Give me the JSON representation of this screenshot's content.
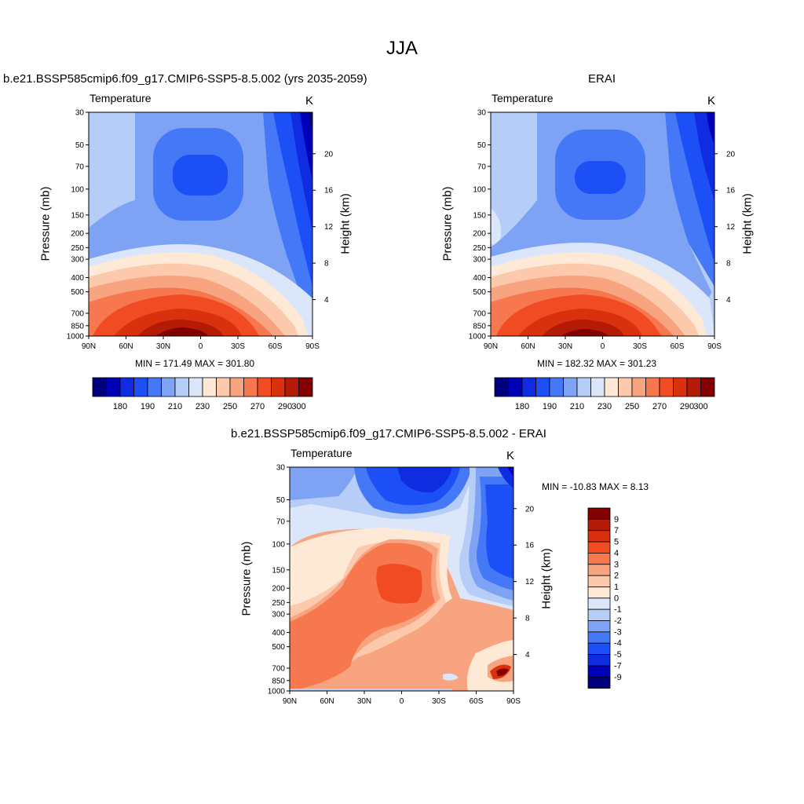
{
  "figure": {
    "title": "JJA"
  },
  "palette": [
    "#00007f",
    "#0000b8",
    "#0f2ce0",
    "#1c4ff5",
    "#4578f7",
    "#7ea3f5",
    "#b5cdf7",
    "#dbe6fb",
    "#fde9d6",
    "#fcc9ac",
    "#f8a480",
    "#f7784e",
    "#f04b23",
    "#d9300e",
    "#b31b06",
    "#820000"
  ],
  "panels": [
    {
      "id": "model",
      "title": "b.e21.BSSP585cmip6.f09_g17.CMIP6-SSP5-8.5.002 (yrs 2035-2059)",
      "variable": "Temperature",
      "units": "K",
      "y_axis_label": "Pressure (mb)",
      "y2_axis_label": "Height (km)",
      "minmax": "MIN = 171.49  MAX = 301.80",
      "colorbar_labels": [
        "180",
        "190",
        "210",
        "230",
        "250",
        "270",
        "290",
        "300"
      ]
    },
    {
      "id": "erai",
      "title": "ERAI",
      "variable": "Temperature",
      "units": "K",
      "y_axis_label": "Pressure (mb)",
      "y2_axis_label": "Height (km)",
      "minmax": "MIN = 182.32  MAX = 301.23",
      "colorbar_labels": [
        "180",
        "190",
        "210",
        "230",
        "250",
        "270",
        "290",
        "300"
      ]
    },
    {
      "id": "diff",
      "title": "b.e21.BSSP585cmip6.f09_g17.CMIP6-SSP5-8.5.002 - ERAI",
      "variable": "Temperature",
      "units": "K",
      "y_axis_label": "Pressure (mb)",
      "y2_axis_label": "Height (km)",
      "minmax": "MIN = -10.83  MAX =   8.13",
      "colorbar_labels": [
        "9",
        "7",
        "5",
        "4",
        "3",
        "2",
        "1",
        "0",
        "-1",
        "-2",
        "-3",
        "-4",
        "-5",
        "-7",
        "-9"
      ]
    }
  ],
  "chart_data": [
    {
      "type": "heatmap",
      "panel": "model",
      "title": "b.e21.BSSP585cmip6.f09_g17.CMIP6-SSP5-8.5.002 (yrs 2035-2059)",
      "variable": "Temperature",
      "units": "K",
      "x_ticks": [
        "90N",
        "60N",
        "30N",
        "0",
        "30S",
        "60S",
        "90S"
      ],
      "x_values": [
        90,
        60,
        30,
        0,
        -30,
        -60,
        -90
      ],
      "y_ticks": [
        "30",
        "50",
        "70",
        "100",
        "150",
        "200",
        "250",
        "300",
        "400",
        "500",
        "700",
        "850",
        "1000"
      ],
      "y_values": [
        30,
        50,
        70,
        100,
        150,
        200,
        250,
        300,
        400,
        500,
        700,
        850,
        1000
      ],
      "y_scale": "log",
      "y_reversed": true,
      "y2_ticks": [
        "4",
        "8",
        "12",
        "16",
        "20"
      ],
      "y2_values": [
        4,
        8,
        12,
        16,
        20
      ],
      "contour_levels": [
        180,
        185,
        190,
        195,
        200,
        210,
        220,
        230,
        240,
        250,
        260,
        270,
        280,
        290,
        295,
        300
      ],
      "min": 171.49,
      "max": 301.8
    },
    {
      "type": "heatmap",
      "panel": "erai",
      "title": "ERAI",
      "variable": "Temperature",
      "units": "K",
      "x_ticks": [
        "90N",
        "60N",
        "30N",
        "0",
        "30S",
        "60S",
        "90S"
      ],
      "x_values": [
        90,
        60,
        30,
        0,
        -30,
        -60,
        -90
      ],
      "y_ticks": [
        "30",
        "50",
        "70",
        "100",
        "150",
        "200",
        "250",
        "300",
        "400",
        "500",
        "700",
        "850",
        "1000"
      ],
      "y_values": [
        30,
        50,
        70,
        100,
        150,
        200,
        250,
        300,
        400,
        500,
        700,
        850,
        1000
      ],
      "y_scale": "log",
      "y_reversed": true,
      "y2_ticks": [
        "4",
        "8",
        "12",
        "16",
        "20"
      ],
      "y2_values": [
        4,
        8,
        12,
        16,
        20
      ],
      "contour_levels": [
        180,
        185,
        190,
        195,
        200,
        210,
        220,
        230,
        240,
        250,
        260,
        270,
        280,
        290,
        295,
        300
      ],
      "min": 182.32,
      "max": 301.23
    },
    {
      "type": "heatmap",
      "panel": "diff",
      "title": "b.e21.BSSP585cmip6.f09_g17.CMIP6-SSP5-8.5.002 - ERAI",
      "variable": "Temperature",
      "units": "K",
      "x_ticks": [
        "90N",
        "60N",
        "30N",
        "0",
        "30S",
        "60S",
        "90S"
      ],
      "x_values": [
        90,
        60,
        30,
        0,
        -30,
        -60,
        -90
      ],
      "y_ticks": [
        "30",
        "50",
        "70",
        "100",
        "150",
        "200",
        "250",
        "300",
        "400",
        "500",
        "700",
        "850",
        "1000"
      ],
      "y_values": [
        30,
        50,
        70,
        100,
        150,
        200,
        250,
        300,
        400,
        500,
        700,
        850,
        1000
      ],
      "y_scale": "log",
      "y_reversed": true,
      "y2_ticks": [
        "4",
        "8",
        "12",
        "16",
        "20"
      ],
      "y2_values": [
        4,
        8,
        12,
        16,
        20
      ],
      "contour_levels": [
        -9,
        -7,
        -5,
        -4,
        -3,
        -2,
        -1,
        0,
        1,
        2,
        3,
        4,
        5,
        7,
        9
      ],
      "min": -10.83,
      "max": 8.13
    }
  ]
}
